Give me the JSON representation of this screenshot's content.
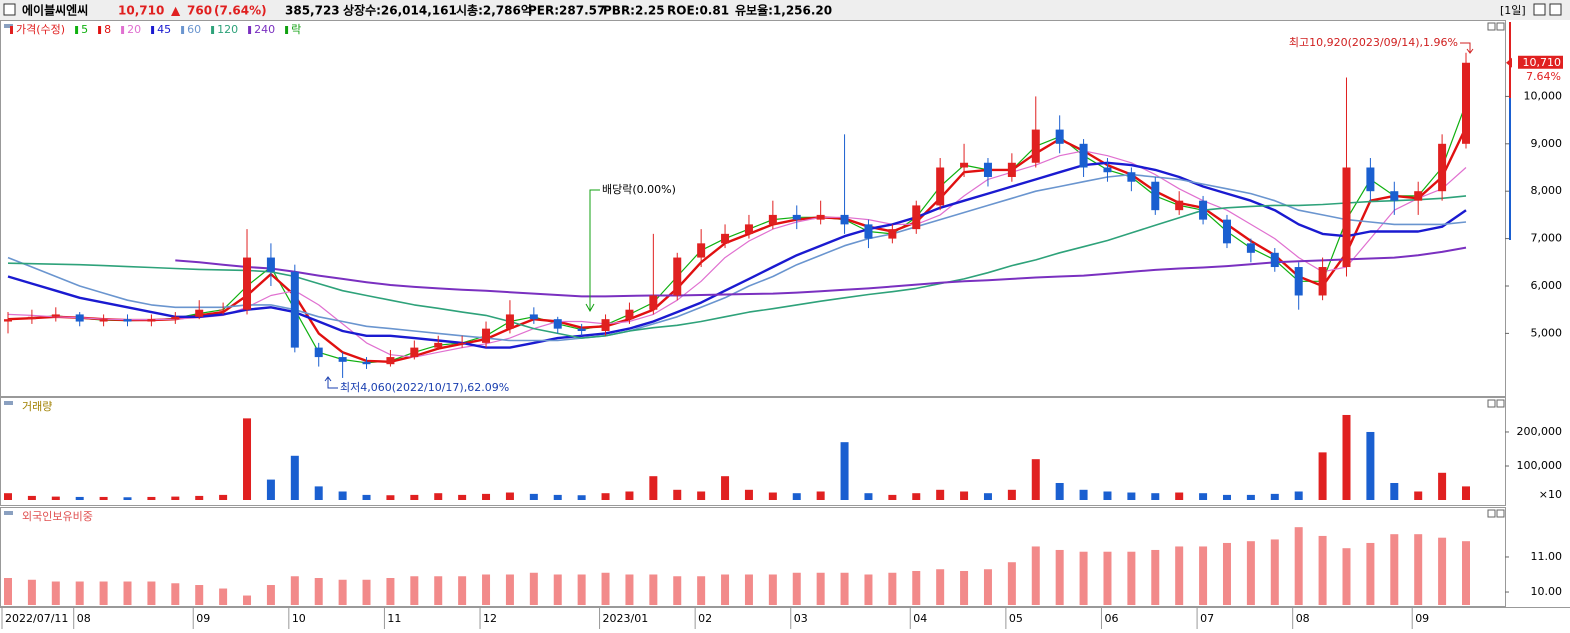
{
  "header": {
    "name": "에이블씨엔씨",
    "price": "10,710",
    "arrow": "▲",
    "change": "760",
    "change_pct": "(7.64%)",
    "volume": "385,723",
    "listed": "상장수:26,014,161",
    "market_cap": "시총:2,786억",
    "per": "PER:287.57",
    "pbr": "PBR:2.25",
    "roe": "ROE:0.81",
    "reserve": "유보율:1,256.20",
    "period": "[1일]"
  },
  "chart_data": [
    {
      "type": "candlestick",
      "categories": [
        "2022/07/11",
        null,
        null,
        "08",
        null,
        null,
        null,
        null,
        "09",
        null,
        null,
        null,
        "10",
        null,
        null,
        null,
        "11",
        null,
        null,
        null,
        "12",
        null,
        null,
        null,
        null,
        "2023/01",
        null,
        null,
        null,
        "02",
        null,
        null,
        null,
        "03",
        null,
        null,
        null,
        null,
        "04",
        null,
        null,
        null,
        "05",
        null,
        null,
        null,
        "06",
        null,
        null,
        null,
        "07",
        null,
        null,
        null,
        "08",
        null,
        null,
        null,
        null,
        "09",
        null,
        null
      ],
      "candles": {
        "name": "가격(수정)",
        "up_color": "#e02020",
        "down_color": "#1a5fd0",
        "open": [
          5250,
          5300,
          5350,
          5400,
          5250,
          5300,
          5250,
          5300,
          5350,
          5500,
          5500,
          6600,
          6300,
          4700,
          4500,
          4400,
          4350,
          4500,
          4700,
          4800,
          4800,
          5100,
          5400,
          5300,
          5100,
          5050,
          5300,
          5500,
          5800,
          6600,
          6900,
          7100,
          7300,
          7500,
          7400,
          7500,
          7300,
          7000,
          7200,
          7700,
          8500,
          8600,
          8300,
          8600,
          9300,
          9000,
          8500,
          8400,
          8200,
          7600,
          7800,
          7400,
          6900,
          6700,
          6400,
          5800,
          6400,
          8500,
          8000,
          7800,
          8000,
          9000
        ],
        "high": [
          5450,
          5500,
          5550,
          5450,
          5400,
          5400,
          5400,
          5450,
          5700,
          5650,
          7200,
          6900,
          6450,
          4800,
          4600,
          4500,
          4650,
          4850,
          4950,
          4950,
          5250,
          5700,
          5550,
          5350,
          5200,
          5400,
          5650,
          7100,
          6700,
          7200,
          7300,
          7500,
          7800,
          7700,
          7800,
          9200,
          7400,
          7300,
          7800,
          8700,
          9000,
          8700,
          8800,
          10000,
          9600,
          9100,
          8700,
          8500,
          8300,
          8000,
          7900,
          7500,
          7000,
          6800,
          6500,
          6600,
          10400,
          8700,
          8200,
          8200,
          9200,
          10920
        ],
        "low": [
          5000,
          5200,
          5250,
          5150,
          5150,
          5150,
          5150,
          5200,
          5300,
          5400,
          5400,
          6000,
          4600,
          4300,
          4060,
          4250,
          4300,
          4450,
          4650,
          4700,
          4700,
          5000,
          5200,
          5000,
          4950,
          4950,
          5200,
          5400,
          5700,
          6400,
          6800,
          7000,
          7200,
          7200,
          7300,
          7100,
          6800,
          6900,
          7100,
          7600,
          8300,
          8100,
          8200,
          8500,
          8800,
          8300,
          8200,
          8000,
          7500,
          7500,
          7300,
          6800,
          6500,
          6300,
          5500,
          5700,
          6200,
          7800,
          7500,
          7500,
          7800,
          8900
        ],
        "close": [
          5300,
          5350,
          5400,
          5250,
          5300,
          5250,
          5300,
          5350,
          5500,
          5500,
          6600,
          6300,
          4700,
          4500,
          4400,
          4350,
          4500,
          4700,
          4800,
          4800,
          5100,
          5400,
          5300,
          5100,
          5050,
          5300,
          5500,
          5800,
          6600,
          6900,
          7100,
          7300,
          7500,
          7400,
          7500,
          7300,
          7000,
          7200,
          7700,
          8500,
          8600,
          8300,
          8600,
          9300,
          9000,
          8500,
          8400,
          8200,
          7600,
          7800,
          7400,
          6900,
          6700,
          6400,
          5800,
          6400,
          8500,
          8000,
          7800,
          8000,
          9000,
          10710
        ]
      },
      "series": [
        {
          "name": "5",
          "color": "#10b010",
          "width": 1.2,
          "values": [
            5300,
            5330,
            5370,
            5320,
            5280,
            5270,
            5280,
            5320,
            5420,
            5500,
            6000,
            6400,
            5500,
            4600,
            4450,
            4380,
            4420,
            4600,
            4750,
            4800,
            4950,
            5250,
            5350,
            5200,
            5080,
            5180,
            5400,
            5650,
            6200,
            6750,
            7000,
            7200,
            7400,
            7450,
            7450,
            7400,
            7150,
            7100,
            7450,
            8100,
            8550,
            8450,
            8450,
            8950,
            9150,
            8750,
            8450,
            8300,
            7900,
            7700,
            7600,
            7150,
            6800,
            6550,
            6100,
            6100,
            7400,
            8250,
            7900,
            7900,
            8500,
            9850
          ]
        },
        {
          "name": "8",
          "color": "#e01010",
          "width": 2.4,
          "values": [
            5300,
            5320,
            5350,
            5330,
            5300,
            5280,
            5280,
            5300,
            5380,
            5450,
            5800,
            6250,
            5800,
            5000,
            4600,
            4420,
            4400,
            4520,
            4680,
            4780,
            4880,
            5100,
            5300,
            5250,
            5120,
            5150,
            5300,
            5500,
            5950,
            6500,
            6900,
            7100,
            7300,
            7400,
            7450,
            7420,
            7250,
            7150,
            7350,
            7850,
            8400,
            8450,
            8450,
            8800,
            9100,
            8850,
            8550,
            8350,
            8000,
            7750,
            7650,
            7300,
            6950,
            6650,
            6200,
            6000,
            6700,
            7800,
            7900,
            7850,
            8300,
            9350
          ]
        },
        {
          "name": "20",
          "color": "#e070d0",
          "width": 1.2,
          "values": [
            5400,
            5380,
            5350,
            5330,
            5300,
            5290,
            5290,
            5300,
            5330,
            5380,
            5550,
            5800,
            5900,
            5600,
            5200,
            4800,
            4550,
            4500,
            4600,
            4700,
            4780,
            4900,
            5100,
            5250,
            5250,
            5200,
            5250,
            5400,
            5700,
            6100,
            6600,
            6950,
            7200,
            7350,
            7450,
            7450,
            7400,
            7300,
            7300,
            7500,
            7900,
            8250,
            8400,
            8550,
            8750,
            8850,
            8750,
            8600,
            8350,
            8050,
            7800,
            7600,
            7300,
            7000,
            6600,
            6300,
            6400,
            7000,
            7600,
            7850,
            8050,
            8500
          ]
        },
        {
          "name": "45",
          "color": "#1a1ad0",
          "width": 2.4,
          "values": [
            6200,
            6050,
            5900,
            5750,
            5650,
            5550,
            5450,
            5350,
            5350,
            5400,
            5500,
            5550,
            5450,
            5250,
            5050,
            4950,
            4950,
            4900,
            4850,
            4800,
            4700,
            4700,
            4800,
            4900,
            4950,
            5000,
            5100,
            5250,
            5450,
            5650,
            5900,
            6150,
            6400,
            6650,
            6850,
            7050,
            7200,
            7300,
            7450,
            7650,
            7800,
            7950,
            8100,
            8250,
            8400,
            8550,
            8600,
            8550,
            8450,
            8300,
            8100,
            7950,
            7800,
            7600,
            7300,
            7100,
            7050,
            7150,
            7150,
            7150,
            7250,
            7600
          ]
        },
        {
          "name": "60",
          "color": "#6a95cf",
          "width": 1.6,
          "values": [
            6600,
            6400,
            6200,
            6000,
            5850,
            5700,
            5600,
            5550,
            5550,
            5550,
            5600,
            5600,
            5500,
            5350,
            5250,
            5150,
            5100,
            5050,
            5000,
            4950,
            4900,
            4850,
            4850,
            4850,
            4900,
            4950,
            5050,
            5200,
            5350,
            5550,
            5750,
            6000,
            6200,
            6450,
            6650,
            6850,
            7000,
            7100,
            7250,
            7400,
            7550,
            7700,
            7850,
            8000,
            8100,
            8200,
            8300,
            8350,
            8300,
            8250,
            8150,
            8050,
            7950,
            7800,
            7600,
            7500,
            7400,
            7350,
            7300,
            7300,
            7300,
            7350
          ]
        },
        {
          "name": "120",
          "color": "#2ea27a",
          "width": 1.6,
          "values": [
            6480,
            6470,
            6460,
            6450,
            6430,
            6410,
            6390,
            6370,
            6350,
            6340,
            6330,
            6300,
            6200,
            6050,
            5900,
            5800,
            5700,
            5600,
            5530,
            5450,
            5380,
            5250,
            5100,
            5000,
            4900,
            4950,
            5050,
            5120,
            5170,
            5250,
            5350,
            5450,
            5520,
            5600,
            5680,
            5750,
            5820,
            5880,
            5950,
            6050,
            6150,
            6280,
            6430,
            6550,
            6700,
            6830,
            6960,
            7120,
            7280,
            7440,
            7600,
            7650,
            7680,
            7700,
            7700,
            7720,
            7750,
            7780,
            7800,
            7820,
            7850,
            7900
          ]
        },
        {
          "name": "240",
          "color": "#7a30c0",
          "width": 2.0,
          "values": [
            null,
            null,
            null,
            null,
            null,
            null,
            null,
            6540,
            6500,
            6450,
            6400,
            6370,
            6300,
            6220,
            6150,
            6080,
            6020,
            5980,
            5950,
            5920,
            5900,
            5870,
            5840,
            5810,
            5780,
            5780,
            5790,
            5800,
            5800,
            5810,
            5820,
            5830,
            5840,
            5860,
            5890,
            5920,
            5950,
            5990,
            6030,
            6070,
            6100,
            6120,
            6150,
            6180,
            6200,
            6220,
            6260,
            6300,
            6340,
            6370,
            6390,
            6420,
            6460,
            6500,
            6520,
            6540,
            6560,
            6580,
            6600,
            6650,
            6720,
            6810
          ]
        }
      ],
      "dividend_legend": "락",
      "dividend_color": "#10a010",
      "high_note": "최고10,920(2023/09/14),1.96%",
      "low_note": "최저4,060(2022/10/17),62.09%",
      "dividend_note": "배당락(0.00%)",
      "last_pct": "7.64%",
      "ylim": [
        3700,
        11570
      ],
      "yticks": [
        {
          "value": 5000,
          "label": "5,000"
        },
        {
          "value": 6000,
          "label": "6,000"
        },
        {
          "value": 7000,
          "label": "7,000"
        },
        {
          "value": 8000,
          "label": "8,000"
        },
        {
          "value": 9000,
          "label": "9,000"
        },
        {
          "value": 10000,
          "label": "10,000"
        }
      ]
    },
    {
      "type": "bar",
      "title": "거래량",
      "unit_note": "×10",
      "values": [
        20000,
        12000,
        10000,
        9000,
        9000,
        8000,
        9000,
        10000,
        12000,
        15000,
        240000,
        60000,
        130000,
        40000,
        25000,
        15000,
        14000,
        15000,
        20000,
        15000,
        18000,
        22000,
        18000,
        15000,
        14000,
        20000,
        25000,
        70000,
        30000,
        25000,
        70000,
        30000,
        22000,
        20000,
        25000,
        170000,
        20000,
        15000,
        20000,
        30000,
        25000,
        20000,
        30000,
        120000,
        50000,
        30000,
        25000,
        22000,
        20000,
        22000,
        20000,
        15000,
        15000,
        18000,
        25000,
        140000,
        250000,
        200000,
        50000,
        25000,
        80000,
        40000
      ],
      "ylim": [
        0,
        294000
      ],
      "yticks": [
        {
          "value": 100000,
          "label": "100,000"
        },
        {
          "value": 200000,
          "label": "200,000"
        }
      ]
    },
    {
      "type": "bar",
      "title": "외국인보유비중",
      "color": "#f28a8a",
      "values": [
        10.4,
        10.35,
        10.3,
        10.3,
        10.3,
        10.3,
        10.3,
        10.25,
        10.2,
        10.1,
        9.9,
        10.2,
        10.45,
        10.4,
        10.35,
        10.35,
        10.4,
        10.45,
        10.45,
        10.45,
        10.5,
        10.5,
        10.55,
        10.5,
        10.5,
        10.55,
        10.5,
        10.5,
        10.45,
        10.45,
        10.5,
        10.5,
        10.5,
        10.55,
        10.55,
        10.55,
        10.5,
        10.55,
        10.6,
        10.65,
        10.6,
        10.65,
        10.85,
        11.3,
        11.2,
        11.15,
        11.15,
        11.15,
        11.2,
        11.3,
        11.3,
        11.4,
        11.45,
        11.5,
        11.85,
        11.6,
        11.25,
        11.4,
        11.65,
        11.65,
        11.55,
        11.45
      ],
      "ylim": [
        9.63,
        12.34
      ],
      "yticks": [
        {
          "value": 10,
          "label": "10.00"
        },
        {
          "value": 11,
          "label": "11.00"
        }
      ]
    }
  ]
}
